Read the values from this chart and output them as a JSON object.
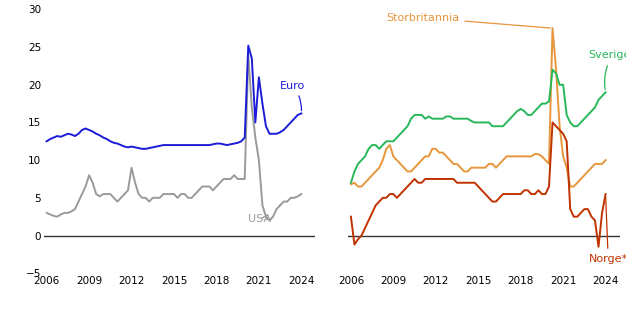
{
  "ylim": [
    -5,
    30
  ],
  "yticks": [
    -5,
    0,
    5,
    10,
    15,
    20,
    25,
    30
  ],
  "xticks": [
    2006,
    2009,
    2012,
    2015,
    2018,
    2021,
    2024
  ],
  "xlim": [
    2005.8,
    2025.0
  ],
  "euro_color": "#1c1cd8",
  "usa_color": "#9a9a9a",
  "storbritannia_color": "#e8963c",
  "sverige_color": "#28b85a",
  "norge_color": "#c03300",
  "euro": {
    "x": [
      2006.0,
      2006.25,
      2006.5,
      2006.75,
      2007.0,
      2007.25,
      2007.5,
      2007.75,
      2008.0,
      2008.25,
      2008.5,
      2008.75,
      2009.0,
      2009.25,
      2009.5,
      2009.75,
      2010.0,
      2010.25,
      2010.5,
      2010.75,
      2011.0,
      2011.25,
      2011.5,
      2011.75,
      2012.0,
      2012.25,
      2012.5,
      2012.75,
      2013.0,
      2013.25,
      2013.5,
      2013.75,
      2014.0,
      2014.25,
      2014.5,
      2014.75,
      2015.0,
      2015.25,
      2015.5,
      2015.75,
      2016.0,
      2016.25,
      2016.5,
      2016.75,
      2017.0,
      2017.25,
      2017.5,
      2017.75,
      2018.0,
      2018.25,
      2018.5,
      2018.75,
      2019.0,
      2019.25,
      2019.5,
      2019.75,
      2020.0,
      2020.25,
      2020.5,
      2020.75,
      2021.0,
      2021.25,
      2021.5,
      2021.75,
      2022.0,
      2022.25,
      2022.5,
      2022.75,
      2023.0,
      2023.25,
      2023.5,
      2023.75,
      2024.0
    ],
    "y": [
      12.5,
      12.8,
      13.0,
      13.2,
      13.1,
      13.3,
      13.5,
      13.4,
      13.2,
      13.5,
      14.0,
      14.2,
      14.0,
      13.8,
      13.5,
      13.3,
      13.0,
      12.8,
      12.5,
      12.3,
      12.2,
      12.0,
      11.8,
      11.7,
      11.8,
      11.7,
      11.6,
      11.5,
      11.5,
      11.6,
      11.7,
      11.8,
      11.9,
      12.0,
      12.0,
      12.0,
      12.0,
      12.0,
      12.0,
      12.0,
      12.0,
      12.0,
      12.0,
      12.0,
      12.0,
      12.0,
      12.0,
      12.1,
      12.2,
      12.2,
      12.1,
      12.0,
      12.1,
      12.2,
      12.3,
      12.5,
      13.0,
      25.2,
      23.5,
      15.0,
      21.0,
      17.5,
      14.5,
      13.5,
      13.5,
      13.5,
      13.7,
      14.0,
      14.5,
      15.0,
      15.5,
      16.0,
      16.2
    ]
  },
  "usa": {
    "x": [
      2006.0,
      2006.25,
      2006.5,
      2006.75,
      2007.0,
      2007.25,
      2007.5,
      2007.75,
      2008.0,
      2008.25,
      2008.5,
      2008.75,
      2009.0,
      2009.25,
      2009.5,
      2009.75,
      2010.0,
      2010.25,
      2010.5,
      2010.75,
      2011.0,
      2011.25,
      2011.5,
      2011.75,
      2012.0,
      2012.25,
      2012.5,
      2012.75,
      2013.0,
      2013.25,
      2013.5,
      2013.75,
      2014.0,
      2014.25,
      2014.5,
      2014.75,
      2015.0,
      2015.25,
      2015.5,
      2015.75,
      2016.0,
      2016.25,
      2016.5,
      2016.75,
      2017.0,
      2017.25,
      2017.5,
      2017.75,
      2018.0,
      2018.25,
      2018.5,
      2018.75,
      2019.0,
      2019.25,
      2019.5,
      2019.75,
      2020.0,
      2020.25,
      2020.5,
      2020.75,
      2021.0,
      2021.25,
      2021.5,
      2021.75,
      2022.0,
      2022.25,
      2022.5,
      2022.75,
      2023.0,
      2023.25,
      2023.5,
      2023.75,
      2024.0
    ],
    "y": [
      3.0,
      2.8,
      2.6,
      2.5,
      2.8,
      3.0,
      3.0,
      3.2,
      3.5,
      4.5,
      5.5,
      6.5,
      8.0,
      7.0,
      5.5,
      5.2,
      5.5,
      5.5,
      5.5,
      5.0,
      4.5,
      5.0,
      5.5,
      6.0,
      9.0,
      7.0,
      5.5,
      5.0,
      5.0,
      4.5,
      5.0,
      5.0,
      5.0,
      5.5,
      5.5,
      5.5,
      5.5,
      5.0,
      5.5,
      5.5,
      5.0,
      5.0,
      5.5,
      6.0,
      6.5,
      6.5,
      6.5,
      6.0,
      6.5,
      7.0,
      7.5,
      7.5,
      7.5,
      8.0,
      7.5,
      7.5,
      7.5,
      24.0,
      17.0,
      13.0,
      10.0,
      4.0,
      2.5,
      2.0,
      2.5,
      3.5,
      4.0,
      4.5,
      4.5,
      5.0,
      5.0,
      5.2,
      5.5
    ]
  },
  "storbritannia": {
    "x": [
      2006.0,
      2006.25,
      2006.5,
      2006.75,
      2007.0,
      2007.25,
      2007.5,
      2007.75,
      2008.0,
      2008.25,
      2008.5,
      2008.75,
      2009.0,
      2009.25,
      2009.5,
      2009.75,
      2010.0,
      2010.25,
      2010.5,
      2010.75,
      2011.0,
      2011.25,
      2011.5,
      2011.75,
      2012.0,
      2012.25,
      2012.5,
      2012.75,
      2013.0,
      2013.25,
      2013.5,
      2013.75,
      2014.0,
      2014.25,
      2014.5,
      2014.75,
      2015.0,
      2015.25,
      2015.5,
      2015.75,
      2016.0,
      2016.25,
      2016.5,
      2016.75,
      2017.0,
      2017.25,
      2017.5,
      2017.75,
      2018.0,
      2018.25,
      2018.5,
      2018.75,
      2019.0,
      2019.25,
      2019.5,
      2019.75,
      2020.0,
      2020.25,
      2020.5,
      2020.75,
      2021.0,
      2021.25,
      2021.5,
      2021.75,
      2022.0,
      2022.25,
      2022.5,
      2022.75,
      2023.0,
      2023.25,
      2023.5,
      2023.75,
      2024.0
    ],
    "y": [
      6.8,
      7.0,
      6.5,
      6.5,
      7.0,
      7.5,
      8.0,
      8.5,
      9.0,
      10.0,
      11.5,
      12.0,
      10.5,
      10.0,
      9.5,
      9.0,
      8.5,
      8.5,
      9.0,
      9.5,
      10.0,
      10.5,
      10.5,
      11.5,
      11.5,
      11.0,
      11.0,
      10.5,
      10.0,
      9.5,
      9.5,
      9.0,
      8.5,
      8.5,
      9.0,
      9.0,
      9.0,
      9.0,
      9.0,
      9.5,
      9.5,
      9.0,
      9.5,
      10.0,
      10.5,
      10.5,
      10.5,
      10.5,
      10.5,
      10.5,
      10.5,
      10.5,
      10.8,
      10.8,
      10.5,
      10.0,
      9.5,
      27.5,
      22.0,
      14.5,
      10.5,
      9.0,
      6.5,
      6.5,
      7.0,
      7.5,
      8.0,
      8.5,
      9.0,
      9.5,
      9.5,
      9.5,
      10.0
    ]
  },
  "sverige": {
    "x": [
      2006.0,
      2006.25,
      2006.5,
      2006.75,
      2007.0,
      2007.25,
      2007.5,
      2007.75,
      2008.0,
      2008.25,
      2008.5,
      2008.75,
      2009.0,
      2009.25,
      2009.5,
      2009.75,
      2010.0,
      2010.25,
      2010.5,
      2010.75,
      2011.0,
      2011.25,
      2011.5,
      2011.75,
      2012.0,
      2012.25,
      2012.5,
      2012.75,
      2013.0,
      2013.25,
      2013.5,
      2013.75,
      2014.0,
      2014.25,
      2014.5,
      2014.75,
      2015.0,
      2015.25,
      2015.5,
      2015.75,
      2016.0,
      2016.25,
      2016.5,
      2016.75,
      2017.0,
      2017.25,
      2017.5,
      2017.75,
      2018.0,
      2018.25,
      2018.5,
      2018.75,
      2019.0,
      2019.25,
      2019.5,
      2019.75,
      2020.0,
      2020.25,
      2020.5,
      2020.75,
      2021.0,
      2021.25,
      2021.5,
      2021.75,
      2022.0,
      2022.25,
      2022.5,
      2022.75,
      2023.0,
      2023.25,
      2023.5,
      2023.75,
      2024.0
    ],
    "y": [
      7.0,
      8.5,
      9.5,
      10.0,
      10.5,
      11.5,
      12.0,
      12.0,
      11.5,
      12.0,
      12.5,
      12.5,
      12.5,
      13.0,
      13.5,
      14.0,
      14.5,
      15.5,
      16.0,
      16.0,
      16.0,
      15.5,
      15.8,
      15.5,
      15.5,
      15.5,
      15.5,
      15.8,
      15.8,
      15.5,
      15.5,
      15.5,
      15.5,
      15.5,
      15.2,
      15.0,
      15.0,
      15.0,
      15.0,
      15.0,
      14.5,
      14.5,
      14.5,
      14.5,
      15.0,
      15.5,
      16.0,
      16.5,
      16.8,
      16.5,
      16.0,
      16.0,
      16.5,
      17.0,
      17.5,
      17.5,
      17.8,
      22.0,
      21.5,
      20.0,
      20.0,
      16.0,
      15.0,
      14.5,
      14.5,
      15.0,
      15.5,
      16.0,
      16.5,
      17.0,
      18.0,
      18.5,
      19.0
    ]
  },
  "norge": {
    "x": [
      2006.0,
      2006.25,
      2006.5,
      2006.75,
      2007.0,
      2007.25,
      2007.5,
      2007.75,
      2008.0,
      2008.25,
      2008.5,
      2008.75,
      2009.0,
      2009.25,
      2009.5,
      2009.75,
      2010.0,
      2010.25,
      2010.5,
      2010.75,
      2011.0,
      2011.25,
      2011.5,
      2011.75,
      2012.0,
      2012.25,
      2012.5,
      2012.75,
      2013.0,
      2013.25,
      2013.5,
      2013.75,
      2014.0,
      2014.25,
      2014.5,
      2014.75,
      2015.0,
      2015.25,
      2015.5,
      2015.75,
      2016.0,
      2016.25,
      2016.5,
      2016.75,
      2017.0,
      2017.25,
      2017.5,
      2017.75,
      2018.0,
      2018.25,
      2018.5,
      2018.75,
      2019.0,
      2019.25,
      2019.5,
      2019.75,
      2020.0,
      2020.25,
      2020.5,
      2020.75,
      2021.0,
      2021.25,
      2021.5,
      2021.75,
      2022.0,
      2022.25,
      2022.5,
      2022.75,
      2023.0,
      2023.25,
      2023.5,
      2023.75,
      2024.0
    ],
    "y": [
      2.5,
      -1.2,
      -0.5,
      0.0,
      1.0,
      2.0,
      3.0,
      4.0,
      4.5,
      5.0,
      5.0,
      5.5,
      5.5,
      5.0,
      5.5,
      6.0,
      6.5,
      7.0,
      7.5,
      7.0,
      7.0,
      7.5,
      7.5,
      7.5,
      7.5,
      7.5,
      7.5,
      7.5,
      7.5,
      7.5,
      7.0,
      7.0,
      7.0,
      7.0,
      7.0,
      7.0,
      6.5,
      6.0,
      5.5,
      5.0,
      4.5,
      4.5,
      5.0,
      5.5,
      5.5,
      5.5,
      5.5,
      5.5,
      5.5,
      6.0,
      6.0,
      5.5,
      5.5,
      6.0,
      5.5,
      5.5,
      6.5,
      15.0,
      14.5,
      14.0,
      13.5,
      12.5,
      3.5,
      2.5,
      2.5,
      3.0,
      3.5,
      3.5,
      2.5,
      2.0,
      -1.5,
      3.0,
      5.5
    ]
  }
}
